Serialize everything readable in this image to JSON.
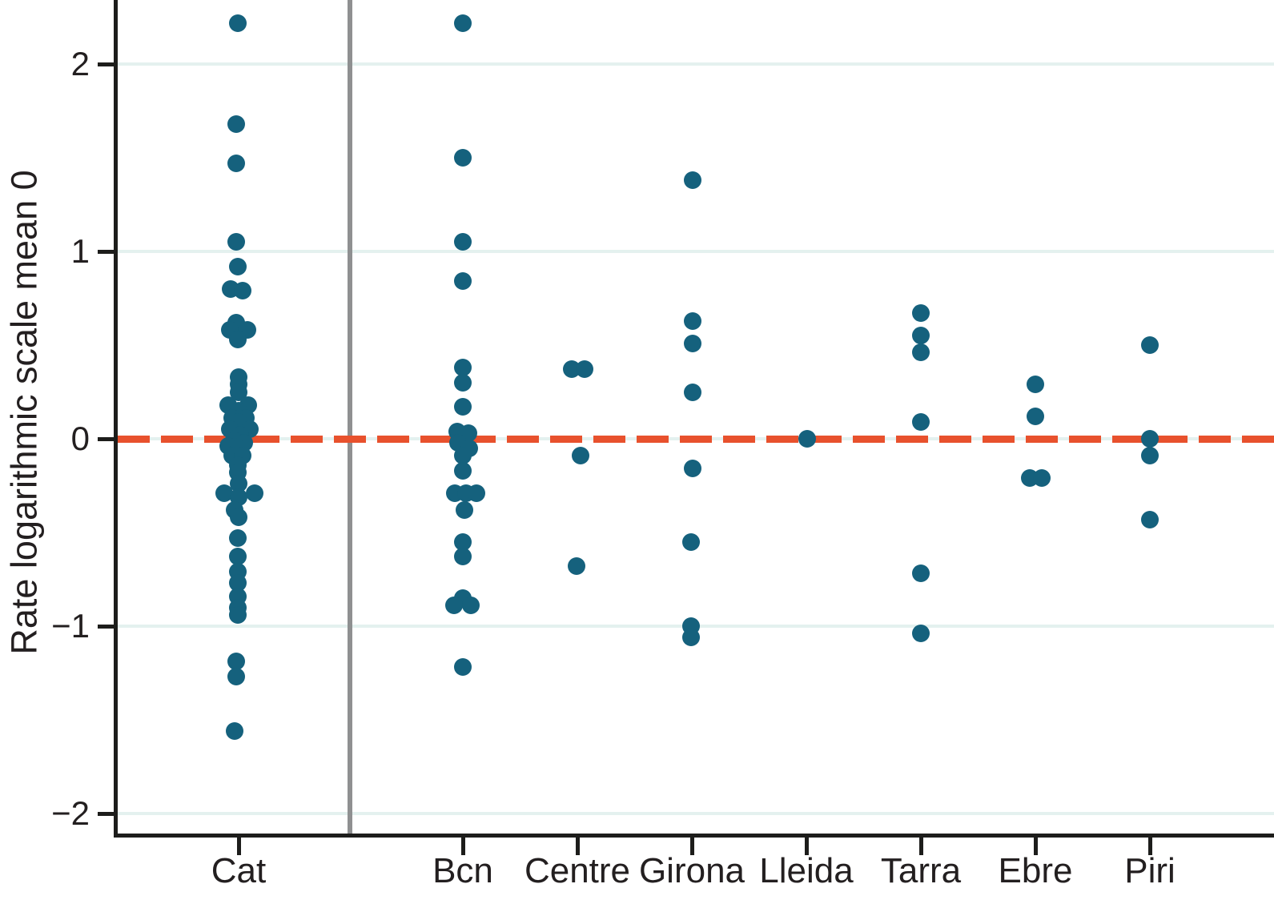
{
  "chart_data": {
    "type": "scatter",
    "title": "",
    "xlabel": "",
    "ylabel": "Rate logarithmic scale mean 0",
    "ylim": [
      -2.11,
      2.34
    ],
    "yticks": [
      -2,
      -1,
      0,
      1,
      2
    ],
    "ytick_labels": [
      "−2",
      "−1",
      "0",
      "1",
      "2"
    ],
    "grid": "horizontal gridlines at each y tick",
    "legend": "none",
    "reference_line": {
      "y": 0,
      "style": "dashed",
      "color": "#e8512d"
    },
    "separator_line": {
      "between": [
        "Cat",
        "Bcn"
      ],
      "orientation": "vertical",
      "color": "#8f9091"
    },
    "categories": [
      "Cat",
      "Bcn",
      "Centre",
      "Girona",
      "Lleida",
      "Tarra",
      "Ebre",
      "Piri"
    ],
    "point_format": "[value, x_jitter_px]",
    "series": [
      {
        "name": "Cat",
        "points": [
          [
            2.22,
            -1
          ],
          [
            1.68,
            -3
          ],
          [
            1.47,
            -3
          ],
          [
            1.05,
            -3
          ],
          [
            0.92,
            -1
          ],
          [
            0.8,
            -10
          ],
          [
            0.79,
            5
          ],
          [
            0.62,
            -3
          ],
          [
            0.58,
            -11
          ],
          [
            0.58,
            11
          ],
          [
            0.53,
            -1
          ],
          [
            0.33,
            0
          ],
          [
            0.29,
            0
          ],
          [
            0.25,
            0
          ],
          [
            0.18,
            -13
          ],
          [
            0.18,
            12
          ],
          [
            0.15,
            0
          ],
          [
            0.11,
            -8
          ],
          [
            0.11,
            9
          ],
          [
            0.09,
            0
          ],
          [
            0.05,
            -11
          ],
          [
            0.05,
            14
          ],
          [
            0.02,
            2
          ],
          [
            -0.01,
            -6
          ],
          [
            -0.02,
            7
          ],
          [
            -0.04,
            -13
          ],
          [
            -0.05,
            0
          ],
          [
            -0.09,
            -8
          ],
          [
            -0.09,
            5
          ],
          [
            -0.14,
            -1
          ],
          [
            -0.18,
            -1
          ],
          [
            -0.24,
            0
          ],
          [
            -0.29,
            -18
          ],
          [
            -0.29,
            20
          ],
          [
            -0.31,
            0
          ],
          [
            -0.38,
            -5
          ],
          [
            -0.42,
            0
          ],
          [
            -0.53,
            -1
          ],
          [
            -0.63,
            -1
          ],
          [
            -0.71,
            -1
          ],
          [
            -0.77,
            -1
          ],
          [
            -0.84,
            -1
          ],
          [
            -0.9,
            -1
          ],
          [
            -0.94,
            -1
          ],
          [
            -1.19,
            -3
          ],
          [
            -1.27,
            -3
          ],
          [
            -1.56,
            -5
          ]
        ]
      },
      {
        "name": "Bcn",
        "points": [
          [
            2.22,
            0
          ],
          [
            1.5,
            0
          ],
          [
            1.05,
            0
          ],
          [
            0.84,
            0
          ],
          [
            0.38,
            0
          ],
          [
            0.3,
            0
          ],
          [
            0.17,
            0
          ],
          [
            0.04,
            -7
          ],
          [
            0.03,
            7
          ],
          [
            -0.02,
            -6
          ],
          [
            -0.05,
            8
          ],
          [
            -0.09,
            0
          ],
          [
            -0.17,
            0
          ],
          [
            -0.29,
            -10
          ],
          [
            -0.29,
            4
          ],
          [
            -0.29,
            17
          ],
          [
            -0.38,
            2
          ],
          [
            -0.55,
            0
          ],
          [
            -0.63,
            0
          ],
          [
            -0.85,
            0
          ],
          [
            -0.89,
            -11
          ],
          [
            -0.89,
            10
          ],
          [
            -1.22,
            0
          ]
        ]
      },
      {
        "name": "Centre",
        "points": [
          [
            0.37,
            -7
          ],
          [
            0.37,
            9
          ],
          [
            -0.09,
            4
          ],
          [
            -0.68,
            -1
          ]
        ]
      },
      {
        "name": "Girona",
        "points": [
          [
            1.38,
            1
          ],
          [
            0.63,
            1
          ],
          [
            0.51,
            1
          ],
          [
            0.25,
            1
          ],
          [
            -0.16,
            1
          ],
          [
            -0.55,
            -1
          ],
          [
            -1.0,
            -1
          ],
          [
            -1.06,
            -1
          ]
        ]
      },
      {
        "name": "Lleida",
        "points": [
          [
            0.0,
            1
          ]
        ]
      },
      {
        "name": "Tarra",
        "points": [
          [
            0.67,
            0
          ],
          [
            0.55,
            0
          ],
          [
            0.46,
            0
          ],
          [
            0.09,
            0
          ],
          [
            -0.72,
            0
          ],
          [
            -1.04,
            0
          ]
        ]
      },
      {
        "name": "Ebre",
        "points": [
          [
            0.29,
            0
          ],
          [
            0.12,
            0
          ],
          [
            -0.21,
            -7
          ],
          [
            -0.21,
            8
          ]
        ]
      },
      {
        "name": "Piri",
        "points": [
          [
            0.5,
            0
          ],
          [
            0.0,
            0
          ],
          [
            -0.09,
            0
          ],
          [
            -0.43,
            0
          ]
        ]
      }
    ],
    "colors": {
      "dot": "#15617d",
      "reference_line": "#e8512d",
      "grid": "#e4f1ef",
      "axis": "#1d1d1b",
      "separator": "#8f9091",
      "text": "#231f20",
      "background": "#ffffff"
    }
  }
}
